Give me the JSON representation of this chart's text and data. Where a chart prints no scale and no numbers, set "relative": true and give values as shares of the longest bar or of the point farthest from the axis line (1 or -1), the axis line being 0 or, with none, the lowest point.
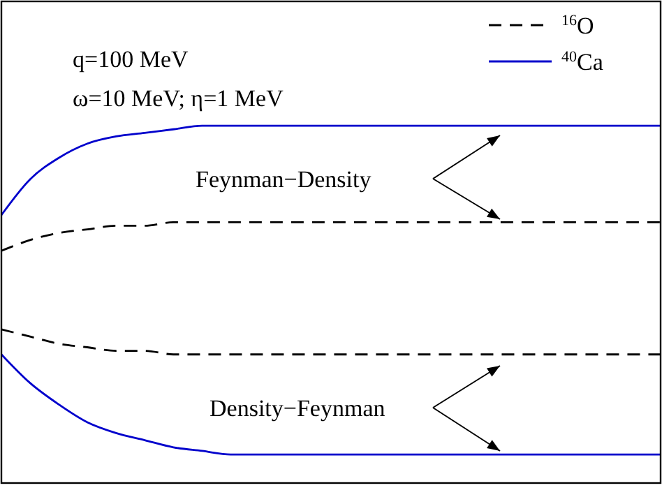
{
  "chart_data": {
    "type": "line",
    "relative": true,
    "tick_labels": false,
    "legend": "top right",
    "categories": [
      null,
      null,
      null,
      null,
      null,
      null,
      null,
      null,
      null,
      null,
      null,
      null,
      null,
      null,
      null,
      null,
      null,
      null,
      null,
      null,
      null,
      null,
      null,
      null
    ],
    "series": [
      {
        "name": "$^{16}$O",
        "color": "#000000",
        "line_style": "dashed",
        "values": [
          0.65,
          0.68,
          0.7,
          0.71,
          0.72,
          0.72,
          0.73,
          0.73,
          0.73,
          0.73,
          0.73,
          0.73,
          0.73,
          0.73,
          0.73,
          0.73,
          0.73,
          0.73,
          0.73,
          0.73,
          0.73,
          0.73,
          0.73,
          0.73
        ]
      },
      {
        "name": "$^{40}$Ca",
        "color": "#0000cc",
        "line_style": "solid",
        "values": [
          0.75,
          0.85,
          0.91,
          0.95,
          0.97,
          0.98,
          0.99,
          1,
          1,
          1,
          1,
          1,
          1,
          1,
          1,
          1,
          1,
          1,
          1,
          1,
          1,
          1,
          1,
          1
        ]
      },
      {
        "color": "#000000",
        "line_style": "dashed",
        "values": [
          0.43,
          0.41,
          0.39,
          0.38,
          0.37,
          0.37,
          0.36,
          0.36,
          0.36,
          0.36,
          0.36,
          0.36,
          0.36,
          0.36,
          0.36,
          0.36,
          0.36,
          0.36,
          0.36,
          0.36,
          0.36,
          0.36,
          0.36,
          0.36
        ]
      },
      {
        "color": "#0000cc",
        "line_style": "solid",
        "values": [
          0.36,
          0.28,
          0.22,
          0.17,
          0.14,
          0.12,
          0.1,
          0.09,
          0.08,
          0.08,
          0.08,
          0.08,
          0.08,
          0.08,
          0.08,
          0.08,
          0.08,
          0.08,
          0.08,
          0.08,
          0.08,
          0.08,
          0.08,
          0.08
        ]
      }
    ],
    "annotations": [
      "q=100 MeV",
      "ω=10 MeV; η=1 MeV",
      "Feynman−Density",
      "Density−Feynman"
    ]
  }
}
